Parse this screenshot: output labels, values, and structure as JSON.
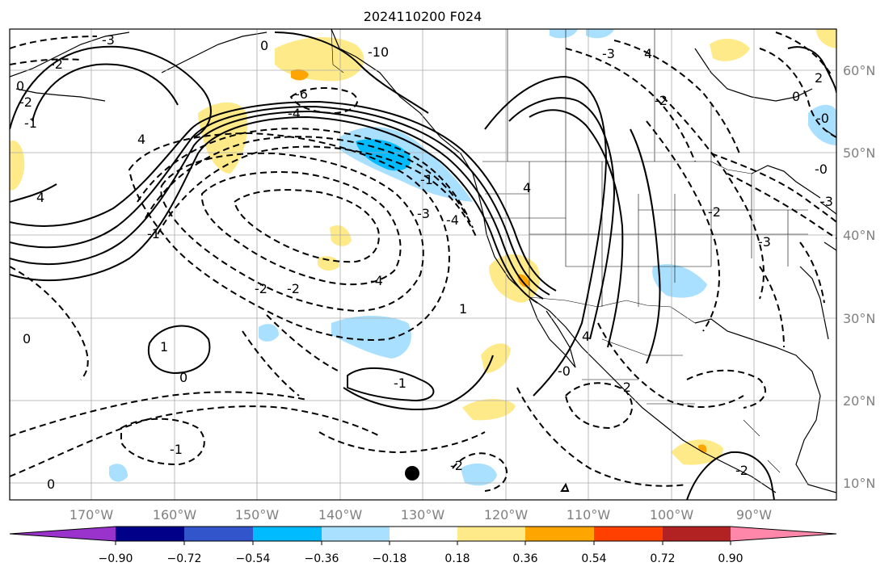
{
  "title": "2024110200 F024",
  "map": {
    "lon_ticks": [
      "170°W",
      "160°W",
      "150°W",
      "140°W",
      "130°W",
      "120°W",
      "110°W",
      "100°W",
      "90°W"
    ],
    "lat_ticks": [
      "60°N",
      "50°N",
      "40°N",
      "30°N",
      "20°N",
      "10°N"
    ],
    "grid": true,
    "contour_labels": [
      "-3",
      "-2",
      "0",
      "-2",
      "-1",
      "0",
      "4",
      "-6",
      "-4",
      "4",
      "4",
      "-4",
      "-3",
      "-2",
      "-2",
      "-4",
      "1",
      "0",
      "-1",
      "-1",
      "0",
      "-1",
      "-0",
      "-10",
      "-3",
      "4",
      "-2",
      "2",
      "0",
      "-0",
      "-2",
      "-3",
      "-0",
      "-3",
      "4",
      "-2",
      "-2",
      "-2",
      "1",
      "-1",
      "0"
    ],
    "marker": "filled-circle"
  },
  "colorbar": {
    "ticks": [
      "−0.90",
      "−0.72",
      "−0.54",
      "−0.36",
      "−0.18",
      "0.18",
      "0.36",
      "0.54",
      "0.72",
      "0.90"
    ],
    "colors": [
      "#9933cc",
      "#000088",
      "#3355cc",
      "#00bbff",
      "#aae0ff",
      "#ffffff",
      "#ffea8a",
      "#ffa500",
      "#ff4000",
      "#b22222",
      "#ff88aa"
    ]
  }
}
